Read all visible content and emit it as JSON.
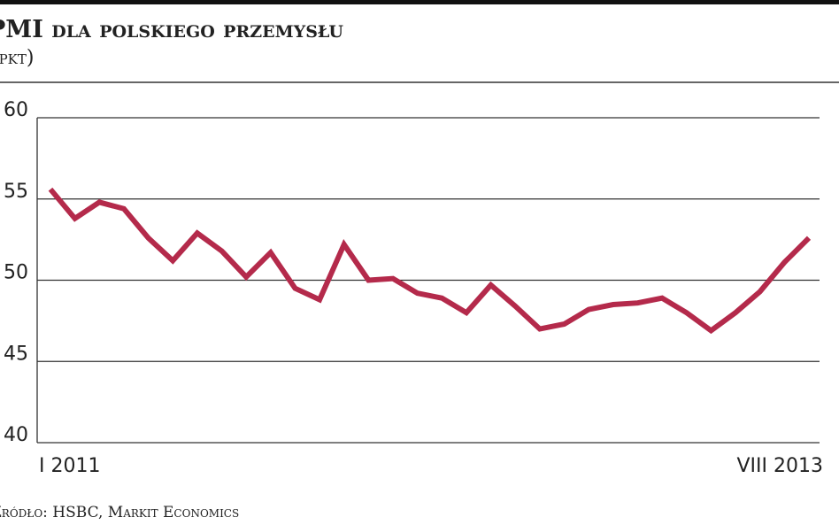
{
  "chart_data": {
    "type": "line",
    "title": "PMI dla polskiego przemysłu",
    "subtitle": "(pkt)",
    "source": "Źródło: HSBC, Markit Economics",
    "categories": [
      "I 2011",
      null,
      null,
      null,
      null,
      null,
      null,
      null,
      null,
      null,
      null,
      null,
      null,
      null,
      null,
      null,
      null,
      null,
      null,
      null,
      null,
      null,
      null,
      null,
      null,
      null,
      null,
      null,
      null,
      null,
      null,
      "VIII 2013"
    ],
    "series": [
      {
        "name": "PMI",
        "color": "#b42a4b",
        "values": [
          55.6,
          53.8,
          54.8,
          54.4,
          52.6,
          51.2,
          52.9,
          51.8,
          50.2,
          51.7,
          49.5,
          48.8,
          52.2,
          50.0,
          50.1,
          49.2,
          48.9,
          48.0,
          49.7,
          48.4,
          47.0,
          47.3,
          48.2,
          48.5,
          48.6,
          48.9,
          48.0,
          46.9,
          48.0,
          49.3,
          51.1,
          52.6
        ]
      }
    ],
    "ylim": [
      40,
      60
    ],
    "yticks": [
      40,
      45,
      50,
      55,
      60
    ],
    "grid": true
  }
}
